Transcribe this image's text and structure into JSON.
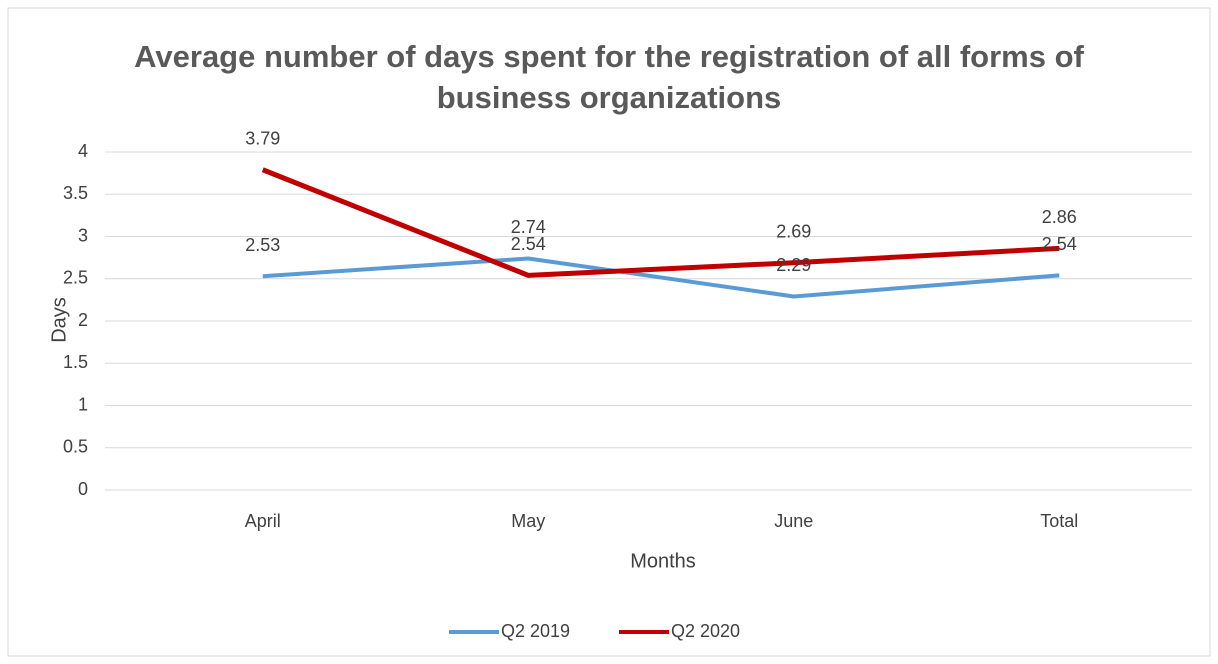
{
  "chart_data": {
    "type": "line",
    "title": "Average number of days spent for the registration of all forms of business organizations",
    "x_label": "Months",
    "y_label": "Days",
    "categories": [
      "April",
      "May",
      "June",
      "Total"
    ],
    "series": [
      {
        "name": "Q2 2019",
        "color": "#5b9bd5",
        "values": [
          2.53,
          2.74,
          2.29,
          2.54
        ]
      },
      {
        "name": "Q2 2020",
        "color": "#c00000",
        "values": [
          3.79,
          2.54,
          2.69,
          2.86
        ]
      }
    ],
    "ylim": [
      0,
      4
    ],
    "yticks": [
      0,
      0.5,
      1,
      1.5,
      2,
      2.5,
      3,
      3.5,
      4
    ],
    "grid": true,
    "legend": "bottom"
  }
}
